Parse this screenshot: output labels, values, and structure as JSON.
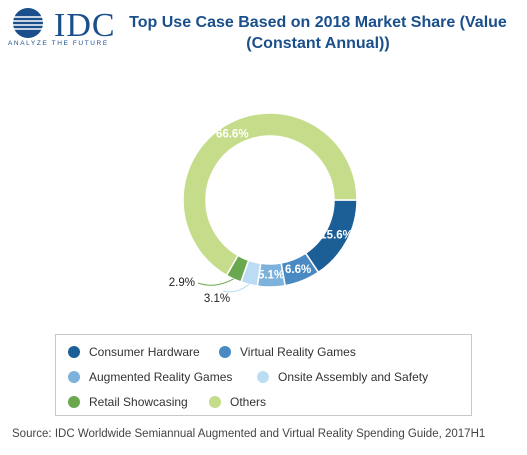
{
  "brand": {
    "logo_text": "IDC",
    "tagline": "ANALYZE THE FUTURE"
  },
  "chart_data": {
    "type": "pie",
    "title": "Top Use Case Based on 2018 Market Share (Value (Constant Annual))",
    "title_lines": [
      "Top Use Case Based on 2018 Market Share (Value",
      "(Constant Annual))"
    ],
    "labels": [
      "Consumer Hardware",
      "Virtual Reality Games",
      "Augmented Reality Games",
      "Onsite Assembly and Safety",
      "Retail Showcasing",
      "Others"
    ],
    "values": [
      15.6,
      6.6,
      5.1,
      3.1,
      2.9,
      66.6
    ],
    "data_labels": [
      "15.6%",
      "6.6%",
      "5.1%",
      "3.1%",
      "2.9%",
      "66.6%"
    ],
    "colors": [
      "#1c5e96",
      "#4a8ac2",
      "#7cb2dc",
      "#bcdcf4",
      "#6aa84f",
      "#c5dd8b"
    ],
    "donut": true,
    "legend_position": "bottom",
    "source": "Source: IDC Worldwide Semiannual Augmented and Virtual Reality Spending Guide, 2017H1"
  }
}
